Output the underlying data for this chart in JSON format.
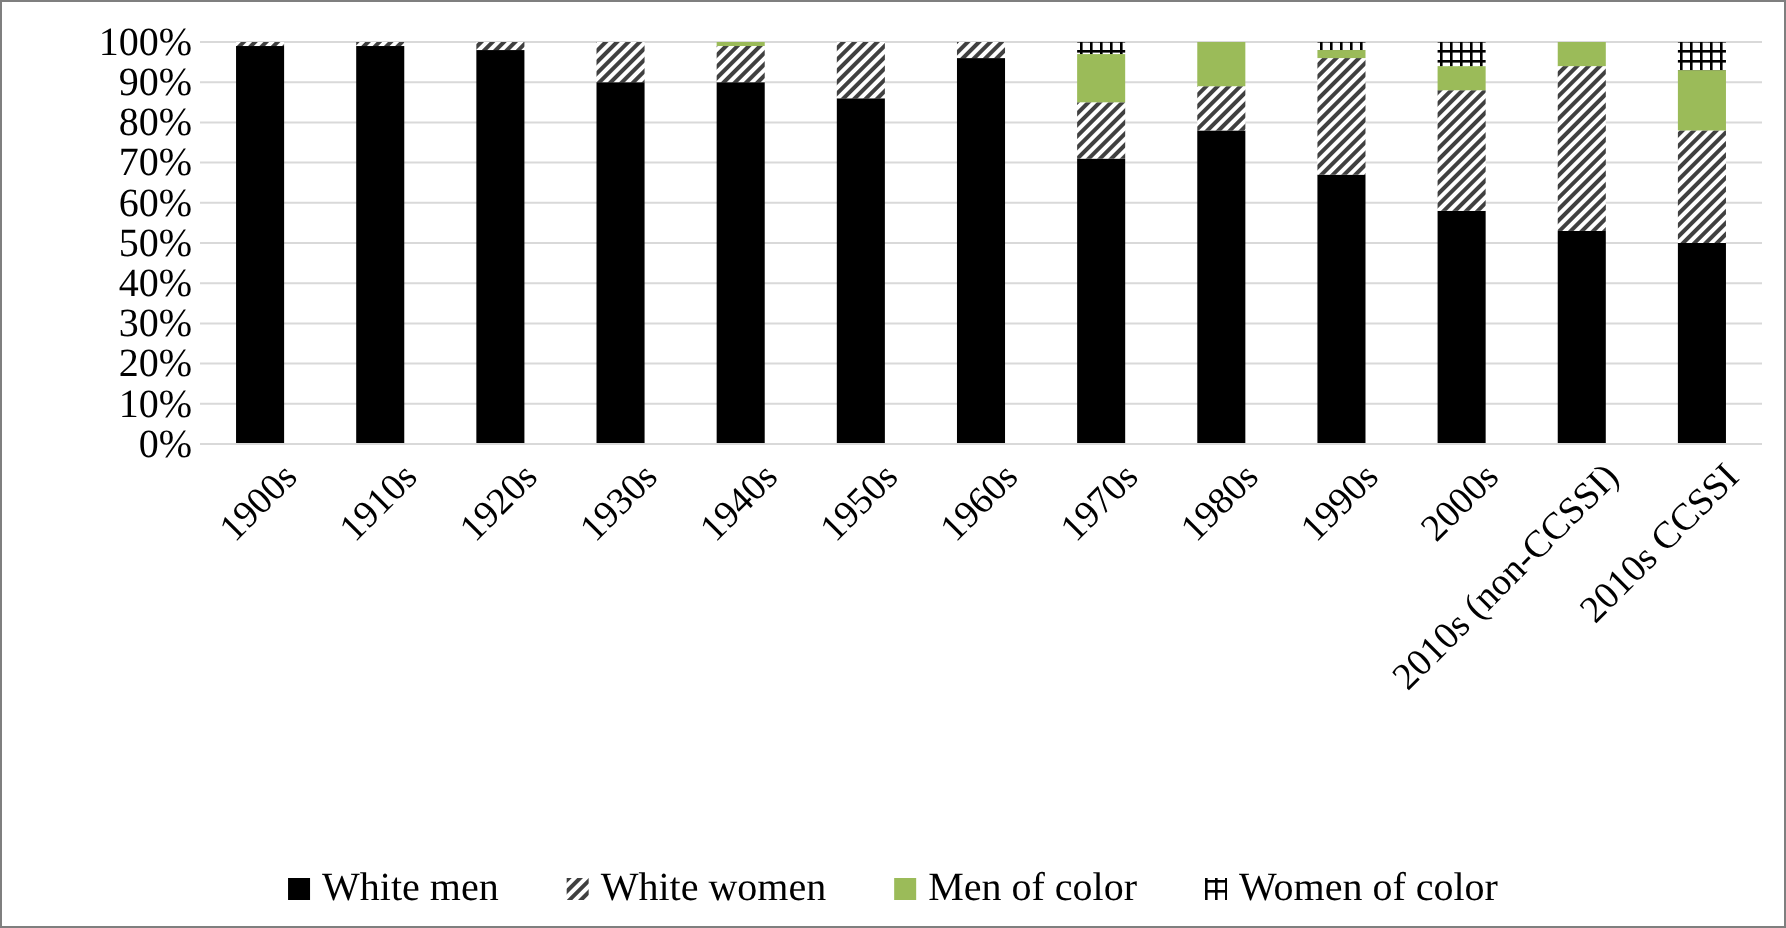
{
  "chart_data": {
    "type": "bar",
    "stacked": true,
    "categories": [
      "1900s",
      "1910s",
      "1920s",
      "1930s",
      "1940s",
      "1950s",
      "1960s",
      "1970s",
      "1980s",
      "1990s",
      "2000s",
      "2010s (non-CCSSI)",
      "2010s CCSSI"
    ],
    "series": [
      {
        "name": "White men",
        "color": "#000000",
        "values": [
          99,
          99,
          98,
          90,
          90,
          86,
          96,
          71,
          78,
          67,
          58,
          53,
          50
        ]
      },
      {
        "name": "White women",
        "color": "#404040",
        "values": [
          1,
          1,
          2,
          10,
          9,
          14,
          4,
          14,
          11,
          29,
          30,
          41,
          28
        ]
      },
      {
        "name": "Men of color",
        "color": "#9bbb59",
        "values": [
          0,
          0,
          0,
          0,
          1,
          0,
          0,
          12,
          11,
          2,
          6,
          6,
          15
        ]
      },
      {
        "name": "Women of color",
        "color": "#000000",
        "values": [
          0,
          0,
          0,
          0,
          0,
          0,
          0,
          3,
          0,
          2,
          6,
          0,
          7
        ]
      }
    ],
    "ylim": [
      0,
      100
    ],
    "yticks": [
      {
        "value": 0,
        "label": "0%"
      },
      {
        "value": 10,
        "label": "10%"
      },
      {
        "value": 20,
        "label": "20%"
      },
      {
        "value": 30,
        "label": "30%"
      },
      {
        "value": 40,
        "label": "40%"
      },
      {
        "value": 50,
        "label": "50%"
      },
      {
        "value": 60,
        "label": "60%"
      },
      {
        "value": 70,
        "label": "70%"
      },
      {
        "value": 80,
        "label": "80%"
      },
      {
        "value": 90,
        "label": "90%"
      },
      {
        "value": 100,
        "label": "100%"
      }
    ],
    "grid": "y",
    "legend": "bottom"
  }
}
